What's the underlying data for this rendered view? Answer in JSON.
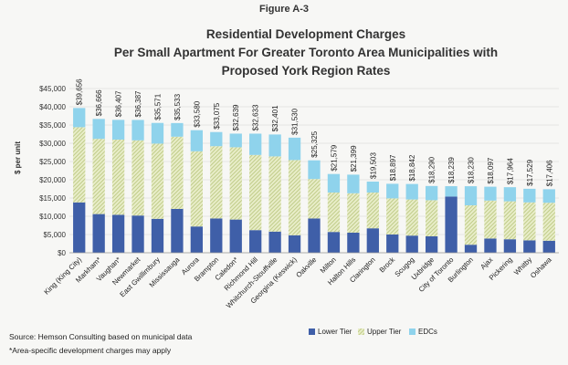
{
  "figure_label": "Figure A-3",
  "source_note": "Source: Hemson Consulting based on municipal data",
  "footnote": "*Area-specific development charges may apply",
  "chart_data": {
    "type": "bar",
    "stacked": true,
    "title_lines": [
      "Residential Development Charges",
      "Per Small Apartment For Greater Toronto Area Municipalities with",
      "Proposed York Region Rates"
    ],
    "ylabel": "$ per unit",
    "xlabel": "",
    "ylim": [
      0,
      45000
    ],
    "yticks": [
      0,
      5000,
      10000,
      15000,
      20000,
      25000,
      30000,
      35000,
      40000,
      45000
    ],
    "ytick_labels": [
      "$0",
      "$5,000",
      "$10,000",
      "$15,000",
      "$20,000",
      "$25,000",
      "$30,000",
      "$35,000",
      "$40,000",
      "$45,000"
    ],
    "grid": true,
    "legend_position": "bottom",
    "categories": [
      "King (King City)",
      "Markham*",
      "Vaughan*",
      "Newmarket",
      "East Gwillimbury",
      "Mississauga",
      "Aurora",
      "Brampton",
      "Caledon*",
      "Richmond Hill",
      "Whitchurch-Stouffville",
      "Georgina (Keswick)",
      "Oakville",
      "Milton",
      "Halton Hills",
      "Clarington",
      "Brock",
      "Scugog",
      "Uxbridge",
      "City of Toronto",
      "Burlington",
      "Ajax",
      "Pickering",
      "Whitby",
      "Oshawa"
    ],
    "totals": [
      39656,
      36666,
      36407,
      36387,
      35571,
      35533,
      33580,
      33075,
      32639,
      32633,
      32401,
      31530,
      25325,
      21579,
      21399,
      19503,
      18897,
      18842,
      18290,
      18239,
      18230,
      18097,
      17964,
      17529,
      17406
    ],
    "total_labels": [
      "$39,656",
      "$36,666",
      "$36,407",
      "$36,387",
      "$35,571",
      "$35,533",
      "$33,580",
      "$33,075",
      "$32,639",
      "$32,633",
      "$32,401",
      "$31,530",
      "$25,325",
      "$21,579",
      "$21,399",
      "$19,503",
      "$18,897",
      "$18,842",
      "$18,290",
      "$18,239",
      "$18,230",
      "$18,097",
      "$17,964",
      "$17,529",
      "$17,406"
    ],
    "series": [
      {
        "name": "Lower Tier",
        "color": "#3f5fa8",
        "values": [
          13800,
          10600,
          10400,
          10200,
          9300,
          12000,
          7200,
          9400,
          9100,
          6200,
          5800,
          4800,
          9400,
          5700,
          5500,
          6700,
          5000,
          4700,
          4500,
          15400,
          2200,
          3900,
          3700,
          3400,
          3300
        ]
      },
      {
        "name": "Upper Tier",
        "color": "#b7c47a",
        "values": [
          20600,
          20600,
          20600,
          20600,
          20600,
          19800,
          20600,
          19800,
          19800,
          20600,
          20600,
          20600,
          10800,
          10800,
          10800,
          9800,
          9900,
          9900,
          9900,
          0,
          10800,
          10400,
          10400,
          10400,
          10400
        ]
      },
      {
        "name": "EDCs",
        "color": "#8fd3ec",
        "values": [
          5256,
          5466,
          5407,
          5587,
          5671,
          3733,
          5780,
          3875,
          3739,
          5833,
          6001,
          6130,
          5125,
          5079,
          5099,
          3003,
          3997,
          4242,
          3890,
          2839,
          5230,
          3797,
          3864,
          3729,
          3706
        ]
      }
    ]
  }
}
